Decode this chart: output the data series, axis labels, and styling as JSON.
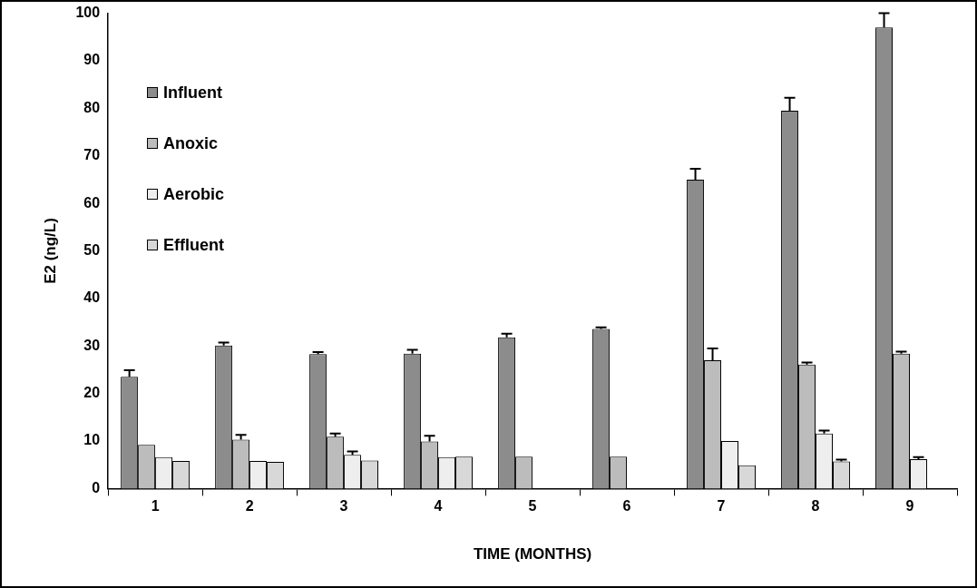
{
  "chart_data": {
    "type": "bar",
    "xlabel": "TIME (MONTHS)",
    "ylabel": "E2 (ng/L)",
    "categories": [
      "1",
      "2",
      "3",
      "4",
      "5",
      "6",
      "7",
      "8",
      "9"
    ],
    "series": [
      {
        "name": "Influent",
        "color": "#8c8c8c",
        "values": [
          23.5,
          30.1,
          28.3,
          28.4,
          31.8,
          33.6,
          65,
          79.5,
          97
        ],
        "errors": [
          [
            23.5,
            24.9
          ],
          [
            30.1,
            30.7
          ],
          [
            28.3,
            28.7
          ],
          [
            28.4,
            29.2
          ],
          [
            31.8,
            32.6
          ],
          [
            33.6,
            33.9
          ],
          [
            65,
            67.3
          ],
          [
            79.5,
            82.2
          ],
          [
            97,
            100
          ]
        ]
      },
      {
        "name": "Anoxic",
        "color": "#bcbcbc",
        "values": [
          9.2,
          10.3,
          10.9,
          9.9,
          6.7,
          6.7,
          27,
          26.1,
          28.4
        ],
        "errors": [
          null,
          [
            10.3,
            11.3
          ],
          [
            10.9,
            11.6
          ],
          [
            9.9,
            11.1
          ],
          null,
          null,
          [
            27,
            29.5
          ],
          [
            26.1,
            26.5
          ],
          [
            28.4,
            28.8
          ]
        ]
      },
      {
        "name": "Aerobic",
        "color": "#eeeeee",
        "values": [
          6.6,
          5.8,
          7.1,
          6.6,
          null,
          null,
          10,
          11.6,
          6.2
        ],
        "errors": [
          null,
          null,
          [
            7.1,
            7.8
          ],
          null,
          null,
          null,
          null,
          [
            11.6,
            12.2
          ],
          [
            6.2,
            6.6
          ]
        ]
      },
      {
        "name": "Effluent",
        "color": "#d8d8d8",
        "values": [
          5.8,
          5.6,
          5.9,
          6.7,
          null,
          null,
          4.9,
          5.7,
          null
        ],
        "errors": [
          null,
          null,
          null,
          null,
          null,
          null,
          null,
          [
            5.7,
            6.1
          ],
          null
        ]
      }
    ],
    "ylim": [
      0,
      100
    ],
    "yticks": [
      0,
      10,
      20,
      30,
      40,
      50,
      60,
      70,
      80,
      90,
      100
    ],
    "grid": false,
    "legend": "top left"
  }
}
